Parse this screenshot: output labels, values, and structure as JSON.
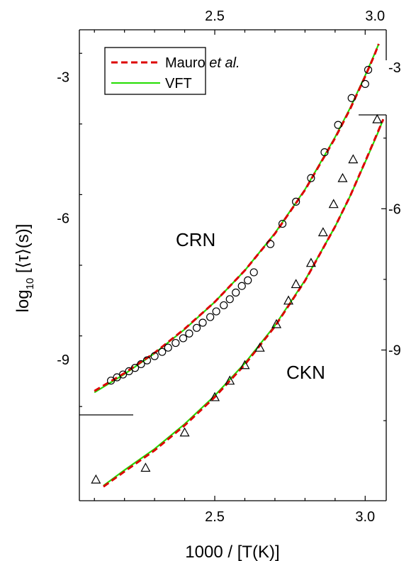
{
  "chart_data": {
    "type": "scatter",
    "xlabel": "1000 / [T(K)]",
    "ylabel": {
      "prefix": "log",
      "sub": "10",
      "suffix": " [⟨τ⟩(s)]"
    },
    "x_bottom": {
      "range": [
        2.05,
        3.07
      ],
      "ticks": [
        "2.5",
        "3.0"
      ],
      "tick_values": [
        2.5,
        3.0
      ]
    },
    "x_top": {
      "range": [
        2.05,
        3.07
      ],
      "ticks": [
        "2.5",
        "3.0"
      ],
      "tick_values": [
        2.5,
        3.0
      ]
    },
    "y_left": {
      "range": [
        -12.0,
        -2.0
      ],
      "ticks": [
        "-3",
        "-6",
        "-9"
      ],
      "tick_values": [
        -3,
        -6,
        -9
      ]
    },
    "y_right": {
      "range": [
        -12.2,
        -2.2
      ],
      "ticks": [
        "-3",
        "-6",
        "-9"
      ],
      "tick_values": [
        -3,
        -6,
        -9
      ]
    },
    "legend": {
      "placement": "top-left",
      "entries": [
        {
          "label": "Mauro ",
          "label_italic": "et al.",
          "color": "#dd0000",
          "style": "dashed"
        },
        {
          "label": "VFT",
          "color": "#22dd00",
          "style": "solid"
        }
      ]
    },
    "annotations": [
      {
        "text": "CRN",
        "x": 2.48,
        "y": -6.4
      },
      {
        "text": "CKN",
        "x": 2.75,
        "y": -8.1
      }
    ],
    "series": [
      {
        "name": "CRN",
        "axis": "left",
        "marker": "circle",
        "points": [
          [
            2.155,
            -9.45
          ],
          [
            2.175,
            -9.38
          ],
          [
            2.195,
            -9.32
          ],
          [
            2.215,
            -9.25
          ],
          [
            2.235,
            -9.18
          ],
          [
            2.255,
            -9.1
          ],
          [
            2.275,
            -9.02
          ],
          [
            2.3,
            -8.93
          ],
          [
            2.325,
            -8.84
          ],
          [
            2.345,
            -8.75
          ],
          [
            2.37,
            -8.65
          ],
          [
            2.395,
            -8.55
          ],
          [
            2.415,
            -8.45
          ],
          [
            2.44,
            -8.33
          ],
          [
            2.46,
            -8.22
          ],
          [
            2.485,
            -8.1
          ],
          [
            2.505,
            -7.98
          ],
          [
            2.53,
            -7.85
          ],
          [
            2.55,
            -7.72
          ],
          [
            2.57,
            -7.58
          ],
          [
            2.59,
            -7.44
          ],
          [
            2.61,
            -7.32
          ],
          [
            2.63,
            -7.15
          ],
          [
            2.685,
            -6.55
          ],
          [
            2.725,
            -6.12
          ],
          [
            2.77,
            -5.65
          ],
          [
            2.82,
            -5.15
          ],
          [
            2.865,
            -4.6
          ],
          [
            2.91,
            -4.02
          ],
          [
            2.955,
            -3.45
          ],
          [
            3.0,
            -3.15
          ],
          [
            3.01,
            -2.85
          ]
        ],
        "fit_mauro": [
          [
            2.1,
            -9.67
          ],
          [
            2.2,
            -9.29
          ],
          [
            2.3,
            -8.86
          ],
          [
            2.4,
            -8.35
          ],
          [
            2.5,
            -7.78
          ],
          [
            2.6,
            -7.11
          ],
          [
            2.7,
            -6.33
          ],
          [
            2.8,
            -5.4
          ],
          [
            2.9,
            -4.3
          ],
          [
            2.95,
            -3.68
          ],
          [
            3.0,
            -2.99
          ],
          [
            3.03,
            -2.55
          ],
          [
            3.045,
            -2.3
          ]
        ],
        "fit_vft": [
          [
            2.1,
            -9.7
          ],
          [
            2.2,
            -9.31
          ],
          [
            2.3,
            -8.87
          ],
          [
            2.4,
            -8.36
          ],
          [
            2.5,
            -7.78
          ],
          [
            2.6,
            -7.11
          ],
          [
            2.7,
            -6.32
          ],
          [
            2.8,
            -5.39
          ],
          [
            2.9,
            -4.28
          ],
          [
            2.95,
            -3.66
          ],
          [
            3.0,
            -2.97
          ],
          [
            3.03,
            -2.53
          ],
          [
            3.045,
            -2.3
          ]
        ]
      },
      {
        "name": "CKN",
        "axis": "right",
        "marker": "triangle",
        "points": [
          [
            2.105,
            -11.75
          ],
          [
            2.27,
            -11.5
          ],
          [
            2.4,
            -10.75
          ],
          [
            2.5,
            -10.0
          ],
          [
            2.55,
            -9.65
          ],
          [
            2.6,
            -9.32
          ],
          [
            2.65,
            -8.95
          ],
          [
            2.705,
            -8.45
          ],
          [
            2.745,
            -7.95
          ],
          [
            2.77,
            -7.6
          ],
          [
            2.82,
            -7.15
          ],
          [
            2.86,
            -6.5
          ],
          [
            2.895,
            -5.9
          ],
          [
            2.925,
            -5.35
          ],
          [
            2.96,
            -4.95
          ],
          [
            3.04,
            -4.1
          ]
        ],
        "fit_mauro": [
          [
            2.13,
            -11.9
          ],
          [
            2.2,
            -11.58
          ],
          [
            2.3,
            -11.13
          ],
          [
            2.4,
            -10.6
          ],
          [
            2.5,
            -10.0
          ],
          [
            2.6,
            -9.31
          ],
          [
            2.7,
            -8.5
          ],
          [
            2.8,
            -7.53
          ],
          [
            2.9,
            -6.38
          ],
          [
            2.95,
            -5.73
          ],
          [
            3.0,
            -5.0
          ],
          [
            3.04,
            -4.4
          ],
          [
            3.06,
            -4.1
          ]
        ],
        "fit_vft": [
          [
            2.13,
            -11.88
          ],
          [
            2.2,
            -11.55
          ],
          [
            2.3,
            -11.1
          ],
          [
            2.4,
            -10.57
          ],
          [
            2.5,
            -9.97
          ],
          [
            2.6,
            -9.28
          ],
          [
            2.7,
            -8.48
          ],
          [
            2.8,
            -7.52
          ],
          [
            2.9,
            -6.38
          ],
          [
            2.95,
            -5.73
          ],
          [
            3.0,
            -5.01
          ],
          [
            3.04,
            -4.42
          ],
          [
            3.06,
            -4.1
          ]
        ]
      }
    ],
    "colors": {
      "mauro": "#dd0000",
      "vft": "#22dd00",
      "axis": "#000000"
    }
  }
}
